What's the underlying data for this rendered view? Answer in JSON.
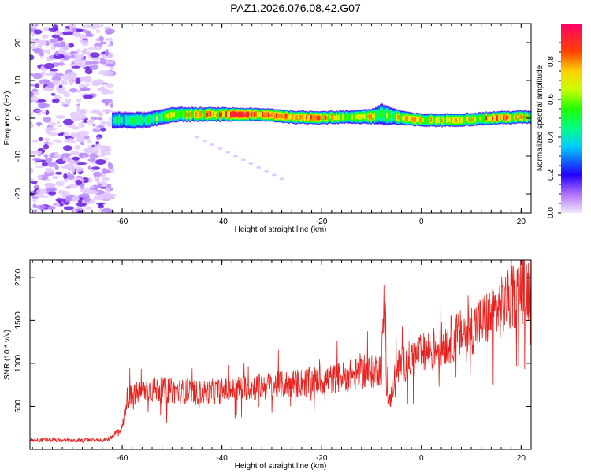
{
  "figure_title": "PAZ1.2026.076.08.42.G07",
  "colors": {
    "snr_line": "#e8221f",
    "axis": "#000000",
    "scatter_light": "#e3c9ff",
    "scatter_mid": "#b98aff",
    "scatter_dark": "#6a1fe0"
  },
  "chart_data": [
    {
      "type": "heatmap",
      "title": "",
      "xlabel": "Height of straight line (km)",
      "ylabel": "Frequency (Hz)",
      "xlim": [
        -78.5,
        22
      ],
      "ylim": [
        -25,
        25
      ],
      "x_ticks": [
        -60,
        -40,
        -20,
        0,
        20
      ],
      "x_tick_labels": [
        "-60",
        "-40",
        "-20",
        "0",
        "20"
      ],
      "y_ticks": [
        -20,
        -10,
        0,
        10,
        20
      ],
      "y_tick_labels": [
        "-20",
        "-10",
        "0",
        "10",
        "20"
      ],
      "colorbar": {
        "label": "Normalized spectral amplitude",
        "range": [
          0,
          1
        ],
        "ticks": [
          0.0,
          0.2,
          0.4,
          0.6,
          0.8
        ],
        "tick_labels": [
          "0.0",
          "0.2",
          "0.4",
          "0.6",
          "0.8"
        ],
        "stops": [
          {
            "v": 0.0,
            "c": "#f2e6ff"
          },
          {
            "v": 0.1,
            "c": "#b070ff"
          },
          {
            "v": 0.2,
            "c": "#2200ff"
          },
          {
            "v": 0.35,
            "c": "#00ccff"
          },
          {
            "v": 0.45,
            "c": "#00ff80"
          },
          {
            "v": 0.55,
            "c": "#20ff00"
          },
          {
            "v": 0.65,
            "c": "#c8ff00"
          },
          {
            "v": 0.75,
            "c": "#ffd000"
          },
          {
            "v": 0.85,
            "c": "#ff4400"
          },
          {
            "v": 1.0,
            "c": "#ff0066"
          }
        ]
      },
      "signal_track": {
        "start_height_km": -62,
        "heights_km": [
          -62,
          -55,
          -50,
          -45,
          -40,
          -35,
          -30,
          -25,
          -20,
          -15,
          -10,
          -8,
          -5,
          -2,
          0,
          5,
          10,
          15,
          20,
          22
        ],
        "center_freq_hz": [
          -0.5,
          -0.5,
          1.0,
          1.0,
          1.0,
          1.0,
          0.8,
          0.2,
          0.2,
          0.3,
          0.5,
          1.0,
          0.3,
          -0.3,
          -0.5,
          -0.5,
          -0.3,
          0.1,
          0.3,
          0.3
        ],
        "peak_amplitude": [
          0.45,
          0.55,
          0.7,
          0.75,
          0.85,
          0.95,
          0.8,
          0.9,
          0.85,
          0.6,
          0.75,
          0.6,
          0.7,
          0.8,
          0.75,
          0.7,
          0.7,
          0.85,
          0.75,
          0.65
        ],
        "half_width_hz": [
          1.4,
          1.3,
          1.2,
          1.1,
          1.1,
          1.0,
          1.0,
          1.0,
          1.0,
          1.0,
          1.2,
          1.8,
          1.2,
          1.0,
          1.0,
          1.0,
          1.0,
          1.0,
          1.0,
          1.0
        ]
      },
      "noise_region_km": [
        -78.5,
        -62
      ],
      "faint_feature": {
        "from": [
          -45,
          -5
        ],
        "to": [
          -28,
          -16
        ]
      }
    },
    {
      "type": "line",
      "title": "",
      "xlabel": "Height of straight line (km)",
      "ylabel": "SNR (10 * v/v)",
      "xlim": [
        -78.5,
        22
      ],
      "ylim": [
        0,
        2200
      ],
      "x_ticks": [
        -60,
        -40,
        -20,
        0,
        20
      ],
      "x_tick_labels": [
        "-60",
        "-40",
        "-20",
        "0",
        "20"
      ],
      "y_ticks": [
        500,
        1000,
        1500,
        2000
      ],
      "y_tick_labels": [
        "500",
        "1000",
        "1500",
        "2000"
      ],
      "series": [
        {
          "name": "SNR",
          "trend_x": [
            -78.5,
            -70,
            -63,
            -60,
            -59,
            -55,
            -50,
            -45,
            -40,
            -35,
            -30,
            -25,
            -20,
            -15,
            -10,
            -8,
            -7.5,
            -7,
            -6.5,
            -5,
            -2,
            0,
            5,
            10,
            15,
            20,
            22
          ],
          "trend_y": [
            110,
            100,
            110,
            250,
            600,
            700,
            680,
            660,
            680,
            720,
            740,
            770,
            800,
            850,
            900,
            950,
            1700,
            750,
            500,
            950,
            1050,
            1100,
            1250,
            1400,
            1600,
            1850,
            1900
          ],
          "noise_frac": 0.22
        }
      ]
    }
  ]
}
